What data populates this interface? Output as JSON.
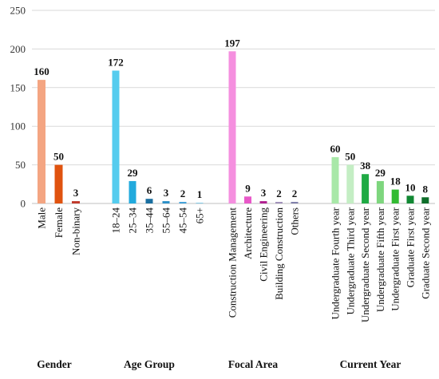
{
  "chart_data": {
    "type": "bar",
    "ylim": [
      0,
      250
    ],
    "yticks": [
      0,
      50,
      100,
      150,
      200,
      250
    ],
    "grid": true,
    "groups": [
      {
        "name": "Gender",
        "categories": [
          "Male",
          "Female",
          "Non-binary"
        ],
        "values": [
          160,
          50,
          3
        ],
        "colors": [
          "#F4A582",
          "#E0530F",
          "#C0392B"
        ]
      },
      {
        "name": "Age Group",
        "categories": [
          "18–24",
          "25–34",
          "35–44",
          "55–64",
          "45–54",
          "65+"
        ],
        "values": [
          172,
          29,
          6,
          3,
          2,
          1
        ],
        "colors": [
          "#55CCEE",
          "#22AADD",
          "#1A6FA0",
          "#2B8FC7",
          "#3FA0D8",
          "#7FC8E8"
        ]
      },
      {
        "name": "Focal Area",
        "categories": [
          "Construction Management",
          "Architecture",
          "Civil Engineering",
          "Building Construction",
          "Others"
        ],
        "values": [
          197,
          9,
          3,
          2,
          2
        ],
        "colors": [
          "#F58FDF",
          "#E858C8",
          "#B0208F",
          "#9E8EB8",
          "#7C7CA8"
        ]
      },
      {
        "name": "Current Year",
        "categories": [
          "Undergraduate Fourth year",
          "Undergraduate Third year",
          "Undergraduate Second year",
          "Undergraduate Fifth year",
          "Undergraduate First year",
          "Graduate First year",
          "Graduate Second year"
        ],
        "values": [
          60,
          50,
          38,
          29,
          18,
          10,
          8
        ],
        "colors": [
          "#A8E8A8",
          "#C4EEC4",
          "#1FAA44",
          "#7ED67E",
          "#33BB33",
          "#118833",
          "#0E6E2A"
        ]
      }
    ]
  }
}
